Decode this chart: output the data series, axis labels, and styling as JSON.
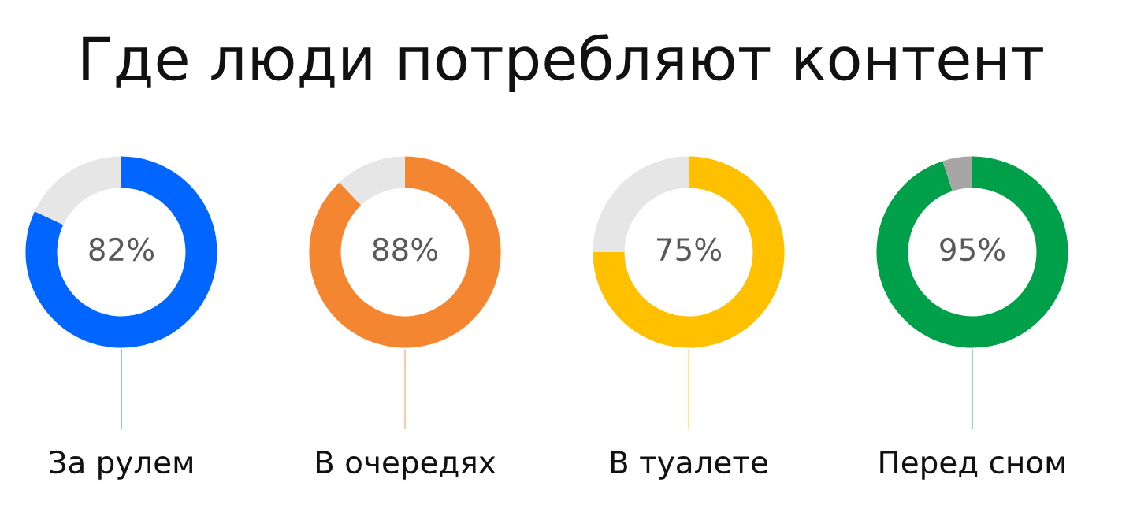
{
  "chart_data": [
    {
      "type": "donut",
      "title": "Где люди потребляют контент",
      "xlabel": "За рулем",
      "categories": [
        null,
        null
      ],
      "values": [
        82,
        18
      ],
      "colors": [
        "#0066ff",
        "#e6e6e6"
      ],
      "value_labels": [
        "82%",
        null
      ]
    },
    {
      "type": "donut",
      "xlabel": "В очередях",
      "categories": [
        null,
        null
      ],
      "values": [
        88,
        12
      ],
      "colors": [
        "#f58631",
        "#e6e6e6"
      ],
      "value_labels": [
        "88%",
        null
      ]
    },
    {
      "type": "donut",
      "xlabel": "В туалете",
      "categories": [
        null,
        null
      ],
      "values": [
        75,
        25
      ],
      "colors": [
        "#ffc000",
        "#e6e6e6"
      ],
      "value_labels": [
        "75%",
        null
      ]
    },
    {
      "type": "donut",
      "xlabel": "Перед сном",
      "categories": [
        null,
        null
      ],
      "values": [
        95,
        5
      ],
      "colors": [
        "#00a04b",
        "#a6a6a6"
      ],
      "value_labels": [
        "95%",
        null
      ]
    }
  ]
}
